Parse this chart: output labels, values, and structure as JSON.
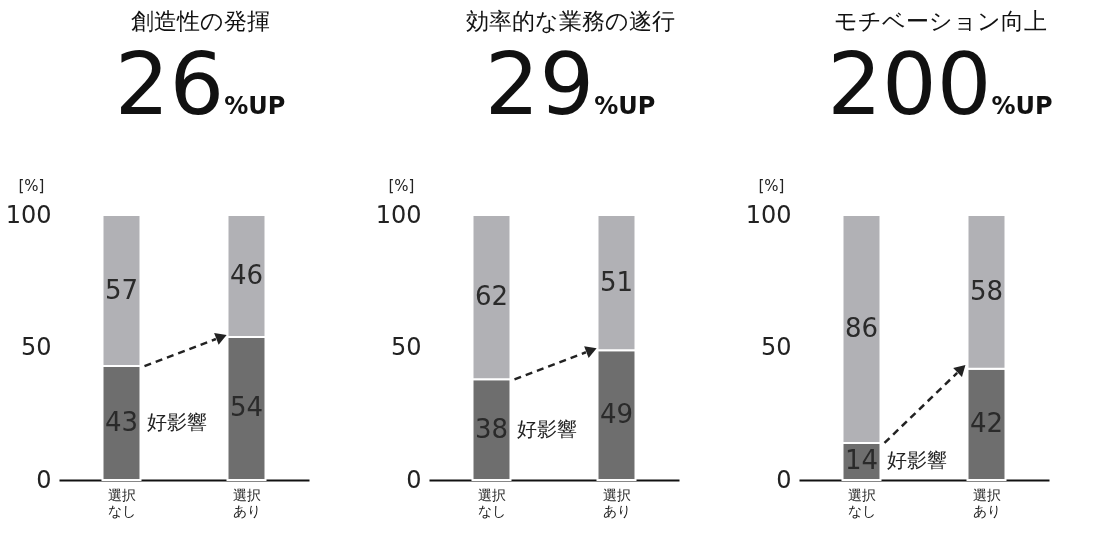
{
  "chart_data": [
    {
      "type": "bar",
      "title": "創造性の発揮",
      "subtitle": "26%UP",
      "ylabel": "[%]",
      "categories": [
        "選択なし",
        "選択あり"
      ],
      "stacked": true,
      "data_labels": true,
      "grid": false,
      "ylim": [
        0,
        100
      ],
      "yticks": [
        0,
        50,
        100
      ],
      "annotations": [
        "好影響"
      ],
      "series": [
        {
          "color": "#6e6e6e",
          "values": [
            43,
            54
          ]
        },
        {
          "color": "#b1b1b5",
          "values": [
            57,
            46
          ]
        }
      ]
    },
    {
      "type": "bar",
      "title": "効率的な業務の遂行",
      "subtitle": "29%UP",
      "ylabel": "[%]",
      "categories": [
        "選択なし",
        "選択あり"
      ],
      "stacked": true,
      "data_labels": true,
      "grid": false,
      "ylim": [
        0,
        100
      ],
      "yticks": [
        0,
        50,
        100
      ],
      "annotations": [
        "好影響"
      ],
      "series": [
        {
          "color": "#6e6e6e",
          "values": [
            38,
            49
          ]
        },
        {
          "color": "#b1b1b5",
          "values": [
            62,
            51
          ]
        }
      ]
    },
    {
      "type": "bar",
      "title": "モチベーション向上",
      "subtitle": "200%UP",
      "ylabel": "[%]",
      "categories": [
        "選択なし",
        "選択あり"
      ],
      "stacked": true,
      "data_labels": true,
      "grid": false,
      "ylim": [
        0,
        100
      ],
      "yticks": [
        0,
        50,
        100
      ],
      "annotations": [
        "好影響"
      ],
      "series": [
        {
          "color": "#6e6e6e",
          "values": [
            14,
            42
          ]
        },
        {
          "color": "#b1b1b5",
          "values": [
            86,
            58
          ]
        }
      ]
    }
  ]
}
